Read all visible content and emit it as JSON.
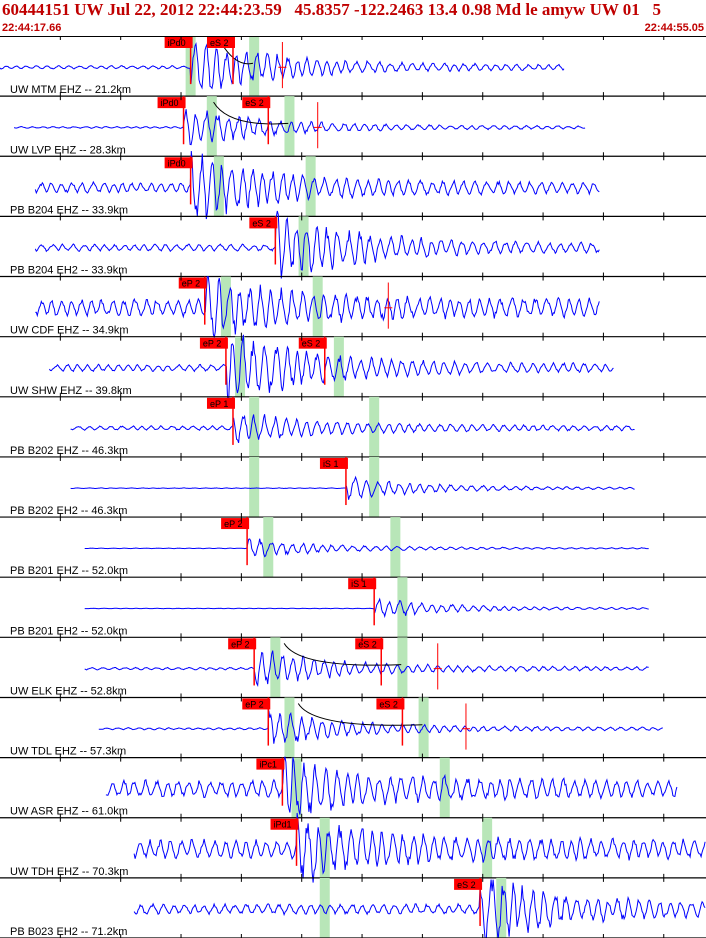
{
  "header": {
    "title": "60444151 UW Jul 22, 2012 22:44:23.59   45.8357 -122.2463 13.4 0.98 Md le amyw UW 01   5",
    "time_start": "22:44:17.66",
    "time_end": "22:44:55.05"
  },
  "colors": {
    "trace": "#0000ff",
    "pick_box": "#ff0000",
    "pick_text": "#ffffff",
    "window": "#b8e6b8",
    "header_text": "#c00000",
    "grid": "#000000"
  },
  "traces": [
    {
      "label": "UW MTM EHZ -- 21.2km",
      "amp": 0.12,
      "burst": 1.8,
      "start": 0.0,
      "end": 0.8,
      "noise": 0.8,
      "picks": [
        {
          "text": "iPd0",
          "t": 0.27
        },
        {
          "text": "eS 2",
          "t": 0.33
        }
      ],
      "windows": [
        0.27,
        0.36
      ],
      "curve": true,
      "ticks": [
        0.4
      ]
    },
    {
      "label": "UW LVP EHZ -- 28.3km",
      "amp": 0.1,
      "burst": 2.0,
      "start": 0.02,
      "end": 0.83,
      "noise": 0.5,
      "picks": [
        {
          "text": "iPd0",
          "t": 0.26
        },
        {
          "text": "eS 2",
          "t": 0.38
        }
      ],
      "windows": [
        0.3,
        0.41
      ],
      "curve": true,
      "ticks": [
        0.45
      ]
    },
    {
      "label": "PB B204 EHZ -- 33.9km",
      "amp": 0.3,
      "burst": 1.4,
      "start": 0.05,
      "end": 0.85,
      "noise": 1.0,
      "picks": [
        {
          "text": "iPd0",
          "t": 0.27
        }
      ],
      "windows": [
        0.31,
        0.44
      ],
      "curve": false,
      "ticks": []
    },
    {
      "label": "PB B204 EH2 -- 33.9km",
      "amp": 0.2,
      "burst": 1.6,
      "start": 0.05,
      "end": 0.85,
      "noise": 1.0,
      "picks": [
        {
          "text": "eS 2",
          "t": 0.39
        }
      ],
      "windows": [
        0.43
      ],
      "curve": false,
      "ticks": []
    },
    {
      "label": "UW CDF EHZ -- 34.9km",
      "amp": 0.5,
      "burst": 1.2,
      "start": 0.05,
      "end": 0.85,
      "noise": 1.0,
      "picks": [
        {
          "text": "eP 2",
          "t": 0.29
        }
      ],
      "windows": [
        0.32,
        0.45
      ],
      "curve": true,
      "ticks": [
        0.55
      ]
    },
    {
      "label": "UW SHW EHZ -- 39.8km",
      "amp": 0.2,
      "burst": 1.7,
      "start": 0.07,
      "end": 0.87,
      "noise": 1.0,
      "picks": [
        {
          "text": "eP 2",
          "t": 0.32
        },
        {
          "text": "eS 2",
          "t": 0.46
        }
      ],
      "windows": [
        0.34,
        0.48
      ],
      "curve": false,
      "ticks": []
    },
    {
      "label": "PB B202 EHZ -- 46.3km",
      "amp": 0.22,
      "burst": 1.2,
      "start": 0.1,
      "end": 0.9,
      "noise": 0.6,
      "picks": [
        {
          "text": "eP 1",
          "t": 0.33
        }
      ],
      "windows": [
        0.36,
        0.53
      ],
      "curve": false,
      "ticks": []
    },
    {
      "label": "PB B202 EH2 -- 46.3km",
      "amp": 0.06,
      "burst": 1.8,
      "start": 0.1,
      "end": 0.9,
      "noise": 0.3,
      "picks": [
        {
          "text": "iS 1",
          "t": 0.49
        }
      ],
      "windows": [
        0.36,
        0.53
      ],
      "curve": false,
      "ticks": []
    },
    {
      "label": "PB B201 EHZ -- 52.0km",
      "amp": 0.04,
      "burst": 1.2,
      "start": 0.12,
      "end": 0.92,
      "noise": 0.4,
      "picks": [
        {
          "text": "eP 2",
          "t": 0.35
        }
      ],
      "windows": [
        0.38,
        0.56
      ],
      "curve": false,
      "ticks": []
    },
    {
      "label": "PB B201 EH2 -- 52.0km",
      "amp": 0.04,
      "burst": 1.5,
      "start": 0.12,
      "end": 0.92,
      "noise": 0.3,
      "picks": [
        {
          "text": "iS 1",
          "t": 0.53
        }
      ],
      "windows": [
        0.57
      ],
      "curve": false,
      "ticks": []
    },
    {
      "label": "UW ELK EHZ -- 52.8km",
      "amp": 0.12,
      "burst": 1.5,
      "start": 0.12,
      "end": 0.92,
      "noise": 0.6,
      "picks": [
        {
          "text": "eP 2",
          "t": 0.36
        },
        {
          "text": "eS 2",
          "t": 0.54
        }
      ],
      "windows": [
        0.39,
        0.57
      ],
      "curve": true,
      "ticks": [
        0.62
      ]
    },
    {
      "label": "UW TDL EHZ -- 57.3km",
      "amp": 0.12,
      "burst": 1.7,
      "start": 0.14,
      "end": 0.94,
      "noise": 0.5,
      "picks": [
        {
          "text": "eP 2",
          "t": 0.38
        },
        {
          "text": "eS 2",
          "t": 0.57
        }
      ],
      "windows": [
        0.41,
        0.6
      ],
      "curve": true,
      "ticks": [
        0.66
      ]
    },
    {
      "label": "UW ASR EHZ -- 61.0km",
      "amp": 0.5,
      "burst": 1.1,
      "start": 0.15,
      "end": 0.96,
      "noise": 1.0,
      "picks": [
        {
          "text": "iPc1",
          "t": 0.4
        }
      ],
      "windows": [
        0.42,
        0.63
      ],
      "curve": false,
      "ticks": []
    },
    {
      "label": "UW TDH EHZ -- 70.3km",
      "amp": 0.55,
      "burst": 1.2,
      "start": 0.19,
      "end": 1.0,
      "noise": 1.0,
      "picks": [
        {
          "text": "iPd1",
          "t": 0.42
        }
      ],
      "windows": [
        0.46,
        0.69
      ],
      "curve": false,
      "ticks": []
    },
    {
      "label": "PB B023 EH2 -- 71.2km",
      "amp": 0.3,
      "burst": 1.4,
      "start": 0.19,
      "end": 1.0,
      "noise": 1.0,
      "picks": [
        {
          "text": "eS 2",
          "t": 0.68
        }
      ],
      "windows": [
        0.46,
        0.71
      ],
      "curve": false,
      "ticks": []
    }
  ]
}
